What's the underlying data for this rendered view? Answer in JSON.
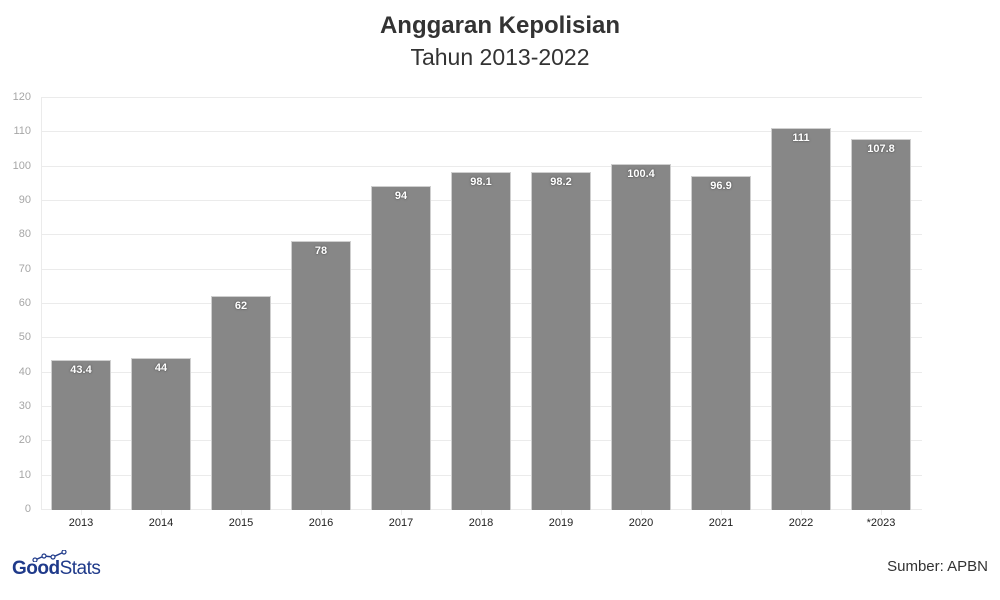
{
  "header": {
    "title": "Anggaran Kepolisian",
    "subtitle": "Tahun 2013-2022"
  },
  "footer": {
    "logo_bold": "Good",
    "logo_light": "Stats",
    "source": "Sumber: APBN"
  },
  "colors": {
    "bar": "#878787",
    "grid": "#ebebeb",
    "logo": "#1f3a8a"
  },
  "chart_data": {
    "type": "bar",
    "title": "Anggaran Kepolisian",
    "subtitle": "Tahun 2013-2022",
    "xlabel": "",
    "ylabel": "",
    "categories": [
      "2013",
      "2014",
      "2015",
      "2016",
      "2017",
      "2018",
      "2019",
      "2020",
      "2021",
      "2022",
      "*2023"
    ],
    "values": [
      43.4,
      44,
      62,
      78,
      94,
      98.1,
      98.2,
      100.4,
      96.9,
      111,
      107.8
    ],
    "data_labels": [
      "43.4",
      "44",
      "62",
      "78",
      "94",
      "98.1",
      "98.2",
      "100.4",
      "96.9",
      "111",
      "107.8"
    ],
    "ylim": [
      0,
      120
    ],
    "yticks": [
      0,
      10,
      20,
      30,
      40,
      50,
      60,
      70,
      80,
      90,
      100,
      110,
      120
    ],
    "grid": true,
    "legend": null,
    "source": "Sumber: APBN"
  }
}
